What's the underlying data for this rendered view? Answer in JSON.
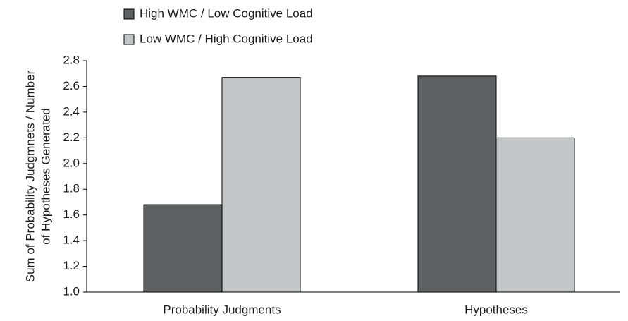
{
  "chart_data": {
    "type": "bar",
    "ylabel": [
      "Sum of Probability Judgmnets / Number",
      "of Hypotheses Generated"
    ],
    "categories": [
      "Probability Judgments",
      "Hypotheses"
    ],
    "series": [
      {
        "name": "High WMC / Low Cognitive Load",
        "color": "#5f6062",
        "values": [
          1.68,
          2.68
        ]
      },
      {
        "name": "Low WMC / High Cognitive Load",
        "color": "#c4c5c7",
        "values": [
          2.67,
          2.2
        ]
      }
    ],
    "ylim": [
      1.0,
      2.8
    ],
    "yticks": [
      {
        "value": 1.0,
        "label": "1.0"
      },
      1.2,
      1.4,
      1.6,
      1.8,
      {
        "value": 2.0,
        "label": "2.0"
      },
      2.2,
      2.4,
      2.6,
      2.8
    ],
    "legend": "top-left"
  }
}
